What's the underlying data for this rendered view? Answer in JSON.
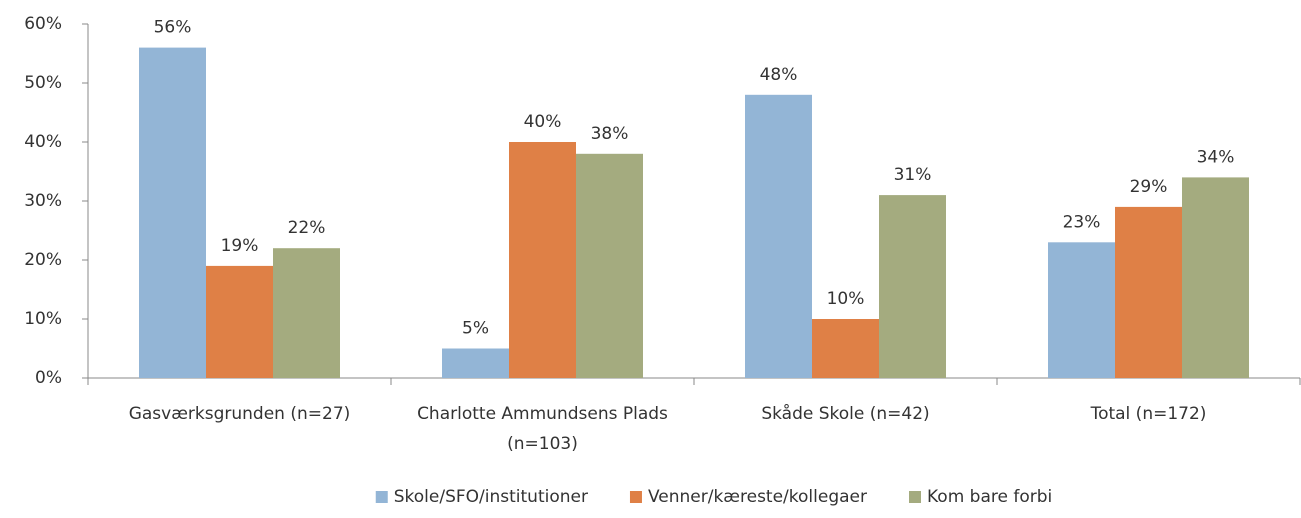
{
  "chart_data": {
    "type": "bar",
    "categories": [
      "Gasværksgrunden (n=27)",
      "Charlotte Ammundsens Plads (n=103)",
      "Skåde Skole (n=42)",
      "Total (n=172)"
    ],
    "series": [
      {
        "name": "Skole/SFO/institutioner",
        "color": "#93b5d6",
        "values": [
          56,
          5,
          48,
          23
        ],
        "value_labels": [
          "56%",
          "5%",
          "48%",
          "23%"
        ]
      },
      {
        "name": "Venner/kæreste/kollegaer",
        "color": "#df8046",
        "values": [
          19,
          40,
          10,
          29
        ],
        "value_labels": [
          "19%",
          "40%",
          "10%",
          "29%"
        ]
      },
      {
        "name": "Kom bare forbi",
        "color": "#a4ab7f",
        "values": [
          22,
          38,
          31,
          34
        ],
        "value_labels": [
          "22%",
          "38%",
          "31%",
          "34%"
        ]
      }
    ],
    "ylim": [
      0,
      60
    ],
    "yticks": [
      {
        "value": 0,
        "label": "0%"
      },
      {
        "value": 10,
        "label": "10%"
      },
      {
        "value": 20,
        "label": "20%"
      },
      {
        "value": 30,
        "label": "30%"
      },
      {
        "value": 40,
        "label": "40%"
      },
      {
        "value": 50,
        "label": "50%"
      },
      {
        "value": 60,
        "label": "60%"
      }
    ],
    "grid": false,
    "legend": "bottom"
  }
}
